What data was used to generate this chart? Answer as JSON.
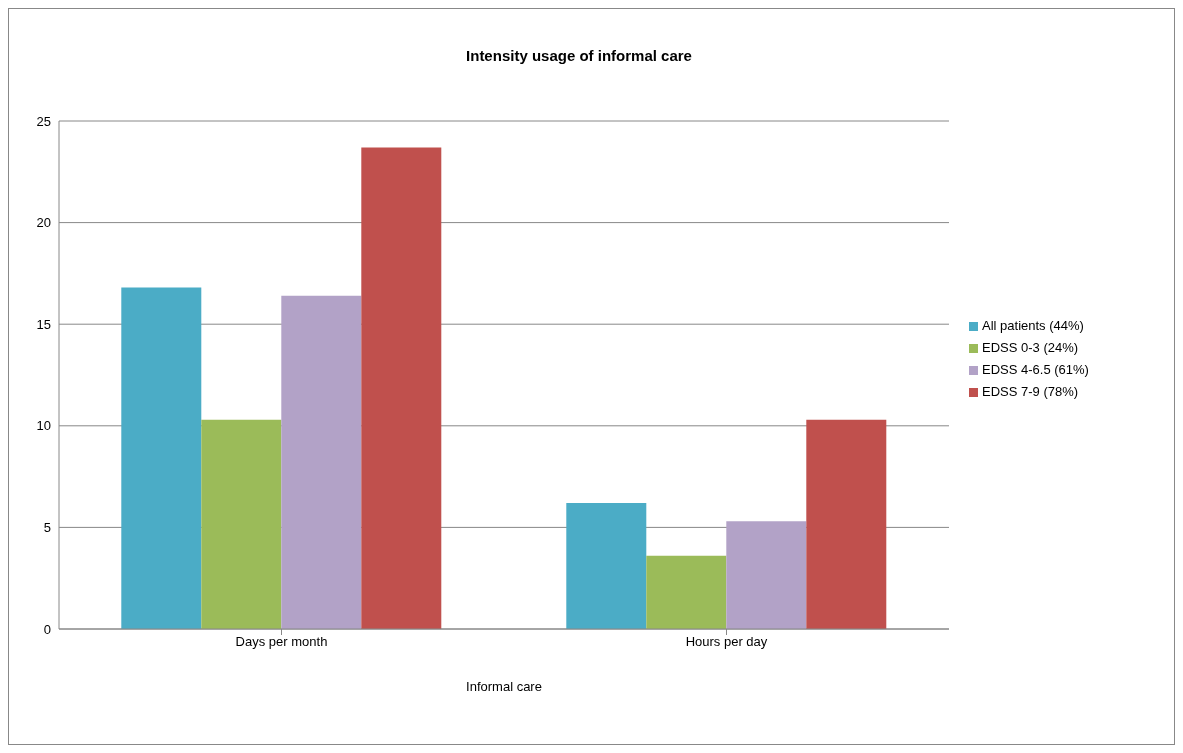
{
  "chart_data": {
    "type": "bar",
    "title": "Intensity usage of informal care",
    "xlabel": "Informal care",
    "categories": [
      "Days per month",
      "Hours per day"
    ],
    "series": [
      {
        "name": "All patients (44%)",
        "color": "#4bacc6",
        "values": [
          16.8,
          6.2
        ]
      },
      {
        "name": "EDSS 0-3 (24%)",
        "color": "#9bbb59",
        "values": [
          10.3,
          3.6
        ]
      },
      {
        "name": "EDSS 4-6.5 (61%)",
        "color": "#b2a2c7",
        "values": [
          16.4,
          5.3
        ]
      },
      {
        "name": "EDSS 7-9 (78%)",
        "color": "#c0504d",
        "values": [
          23.7,
          10.3
        ]
      }
    ],
    "ylim": [
      0,
      25
    ],
    "yticks": [
      0,
      5,
      10,
      15,
      20,
      25
    ],
    "grid": "y",
    "legend": "right"
  }
}
